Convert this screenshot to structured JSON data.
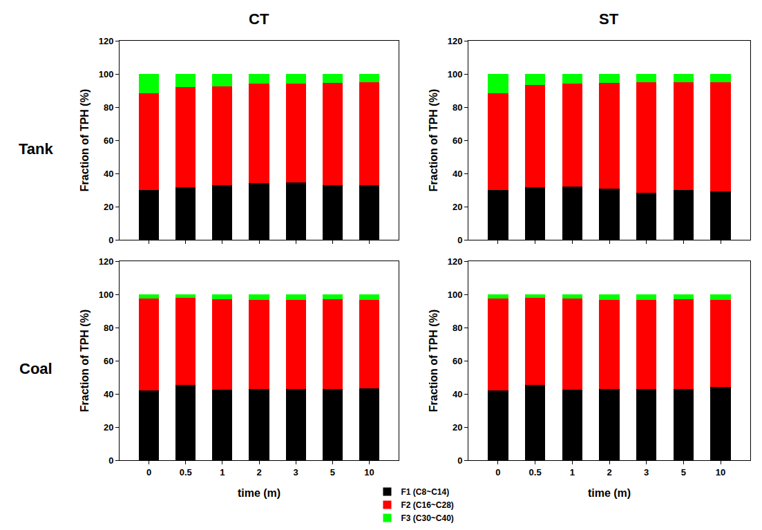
{
  "column_titles": [
    "CT",
    "ST"
  ],
  "row_titles": [
    "Tank",
    "Coal"
  ],
  "chart_data": [
    {
      "type": "bar",
      "stacked": true,
      "tick_labels": "y",
      "y_label": "Fraction of TPH (%)",
      "categories": [
        "0",
        "0.5",
        "1",
        "2",
        "3",
        "5",
        "10"
      ],
      "ylim": [
        0,
        120
      ],
      "yticks": [
        0,
        20,
        40,
        60,
        80,
        100,
        120
      ],
      "series": [
        {
          "name": "F1 (C8~C14)",
          "color": "#000000",
          "values": [
            30,
            31.5,
            33,
            34,
            34.5,
            33,
            33
          ]
        },
        {
          "name": "F2 (C16~C28)",
          "color": "#ff0000",
          "values": [
            58.5,
            60.5,
            59.5,
            60,
            59.5,
            61.5,
            62
          ]
        },
        {
          "name": "F3 (C30~C40)",
          "color": "#00ff00",
          "values": [
            11.5,
            8,
            7.5,
            6,
            6,
            5.5,
            5
          ]
        }
      ]
    },
    {
      "type": "bar",
      "stacked": true,
      "tick_labels": "y",
      "y_label": "Fraction of TPH (%)",
      "categories": [
        "0",
        "0.5",
        "1",
        "2",
        "3",
        "5",
        "10"
      ],
      "ylim": [
        0,
        120
      ],
      "yticks": [
        0,
        20,
        40,
        60,
        80,
        100,
        120
      ],
      "series": [
        {
          "name": "F1 (C8~C14)",
          "color": "#000000",
          "values": [
            30,
            31.5,
            32,
            31,
            28.5,
            30,
            29
          ]
        },
        {
          "name": "F2 (C16~C28)",
          "color": "#ff0000",
          "values": [
            58.5,
            62,
            62,
            63.5,
            66.5,
            65,
            66
          ]
        },
        {
          "name": "F3 (C30~C40)",
          "color": "#00ff00",
          "values": [
            11.5,
            6.5,
            6,
            5.5,
            5,
            5,
            5
          ]
        }
      ]
    },
    {
      "type": "bar",
      "stacked": true,
      "x_label": "time (m)",
      "y_label": "Fraction of TPH (%)",
      "categories": [
        "0",
        "0.5",
        "1",
        "2",
        "3",
        "5",
        "10"
      ],
      "ylim": [
        0,
        120
      ],
      "yticks": [
        0,
        20,
        40,
        60,
        80,
        100,
        120
      ],
      "series": [
        {
          "name": "F1 (C8~C14)",
          "color": "#000000",
          "values": [
            42,
            45.5,
            42.5,
            43,
            43,
            43,
            43.5
          ]
        },
        {
          "name": "F2 (C16~C28)",
          "color": "#ff0000",
          "values": [
            55.5,
            52.5,
            54.5,
            53.5,
            53.5,
            54,
            53
          ]
        },
        {
          "name": "F3 (C30~C40)",
          "color": "#00ff00",
          "values": [
            2.5,
            2,
            3,
            3.5,
            3.5,
            3,
            3.5
          ]
        }
      ]
    },
    {
      "type": "bar",
      "stacked": true,
      "x_label": "time (m)",
      "y_label": "Fraction of TPH (%)",
      "categories": [
        "0",
        "0.5",
        "1",
        "2",
        "3",
        "5",
        "10"
      ],
      "ylim": [
        0,
        120
      ],
      "yticks": [
        0,
        20,
        40,
        60,
        80,
        100,
        120
      ],
      "series": [
        {
          "name": "F1 (C8~C14)",
          "color": "#000000",
          "values": [
            42,
            45.5,
            42.5,
            43,
            43,
            43,
            44
          ]
        },
        {
          "name": "F2 (C16~C28)",
          "color": "#ff0000",
          "values": [
            55.5,
            52.5,
            55,
            53.5,
            53.5,
            54,
            52.5
          ]
        },
        {
          "name": "F3 (C30~C40)",
          "color": "#00ff00",
          "values": [
            2.5,
            2,
            2.5,
            3.5,
            3.5,
            3,
            3.5
          ]
        }
      ]
    }
  ]
}
